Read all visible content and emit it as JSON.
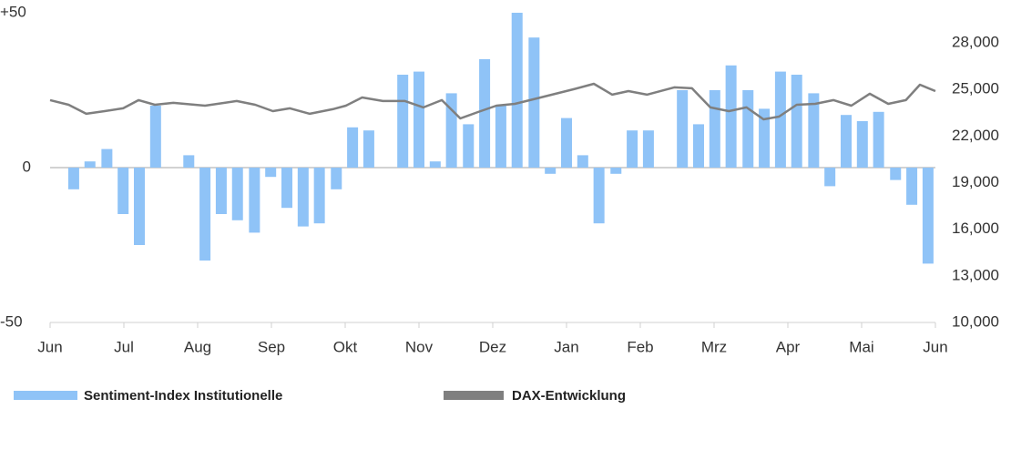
{
  "chart_data": {
    "type": "combo",
    "xlim": [
      0,
      12
    ],
    "xticks": [
      {
        "value": 0,
        "label": "Jun"
      },
      {
        "value": 1,
        "label": "Jul"
      },
      {
        "value": 2,
        "label": "Aug"
      },
      {
        "value": 3,
        "label": "Sep"
      },
      {
        "value": 4,
        "label": "Okt"
      },
      {
        "value": 5,
        "label": "Nov"
      },
      {
        "value": 6,
        "label": "Dez"
      },
      {
        "value": 7,
        "label": "Jan"
      },
      {
        "value": 8,
        "label": "Feb"
      },
      {
        "value": 9,
        "label": "Mrz"
      },
      {
        "value": 10,
        "label": "Apr"
      },
      {
        "value": 11,
        "label": "Mai"
      },
      {
        "value": 12,
        "label": "Jun"
      }
    ],
    "ylim": [
      -50,
      50
    ],
    "yticks": [
      {
        "value": 50,
        "label": "+50"
      },
      0,
      -50
    ],
    "y2lim": [
      10000,
      29930
    ],
    "y2ticks": [
      {
        "value": 10000,
        "label": "10,000"
      },
      {
        "value": 13000,
        "label": "13,000"
      },
      {
        "value": 16000,
        "label": "16,000"
      },
      {
        "value": 19000,
        "label": "19,000"
      },
      {
        "value": 22000,
        "label": "22,000"
      },
      {
        "value": 25000,
        "label": "25,000"
      },
      {
        "value": 28000,
        "label": "28,000"
      }
    ],
    "series": [
      {
        "name": "Sentiment-Index Institutionelle",
        "type": "bar",
        "color": "#8fc3f7",
        "x": [
          0.32,
          0.54,
          0.77,
          0.99,
          1.21,
          1.43,
          1.88,
          2.1,
          2.32,
          2.54,
          2.77,
          2.99,
          3.21,
          3.43,
          3.65,
          3.88,
          4.1,
          4.32,
          4.78,
          5.0,
          5.22,
          5.44,
          5.67,
          5.89,
          6.11,
          6.33,
          6.56,
          6.78,
          7.0,
          7.22,
          7.44,
          7.67,
          7.89,
          8.11,
          8.57,
          8.79,
          9.01,
          9.23,
          9.46,
          9.68,
          9.9,
          10.12,
          10.35,
          10.57,
          10.79,
          11.01,
          11.23,
          11.46,
          11.68,
          11.9
        ],
        "values": [
          -7,
          2,
          6,
          -15,
          -25,
          20,
          4,
          -30,
          -15,
          -17,
          -21,
          -3,
          -13,
          -19,
          -18,
          -7,
          13,
          12,
          30,
          31,
          2,
          24,
          14,
          35,
          20,
          50,
          42,
          -2,
          16,
          4,
          -18,
          -2,
          12,
          12,
          25,
          14,
          25,
          33,
          25,
          19,
          31,
          30,
          24,
          -6,
          17,
          15,
          18,
          -4,
          -12,
          -31
        ]
      },
      {
        "name": "DAX-Entwicklung",
        "type": "line",
        "color": "#7f7f7f",
        "axis": "y2",
        "x": [
          0,
          0.25,
          0.49,
          0.74,
          0.99,
          1.2,
          1.42,
          1.67,
          2.1,
          2.53,
          2.78,
          3.02,
          3.25,
          3.52,
          3.83,
          4.01,
          4.23,
          4.51,
          4.81,
          5.06,
          5.31,
          5.56,
          5.8,
          6.05,
          6.3,
          6.6,
          7.1,
          7.37,
          7.62,
          7.84,
          8.09,
          8.46,
          8.7,
          8.95,
          9.2,
          9.44,
          9.67,
          9.88,
          10.12,
          10.37,
          10.62,
          10.86,
          11.11,
          11.36,
          11.6,
          11.79,
          12
        ],
        "values": [
          24310,
          24010,
          23430,
          23600,
          23780,
          24310,
          24010,
          24130,
          23950,
          24250,
          24010,
          23600,
          23780,
          23430,
          23720,
          23950,
          24480,
          24250,
          24250,
          23840,
          24310,
          23130,
          23540,
          23950,
          24070,
          24420,
          25010,
          25360,
          24660,
          24890,
          24660,
          25130,
          25070,
          23840,
          23600,
          23840,
          23070,
          23250,
          24010,
          24070,
          24310,
          23950,
          24720,
          24070,
          24310,
          25300,
          24890
        ]
      }
    ]
  }
}
